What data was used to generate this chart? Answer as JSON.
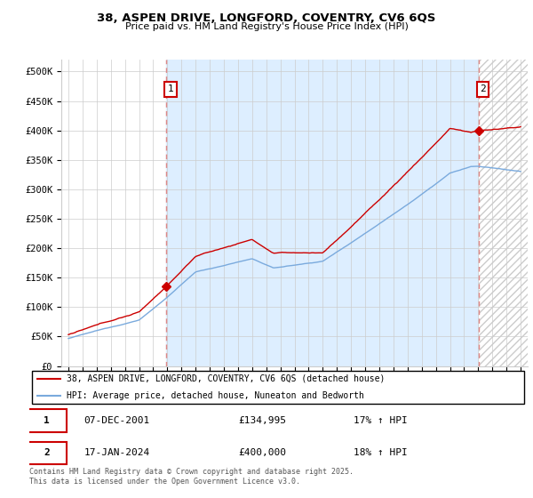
{
  "title1": "38, ASPEN DRIVE, LONGFORD, COVENTRY, CV6 6QS",
  "title2": "Price paid vs. HM Land Registry's House Price Index (HPI)",
  "legend1": "38, ASPEN DRIVE, LONGFORD, COVENTRY, CV6 6QS (detached house)",
  "legend2": "HPI: Average price, detached house, Nuneaton and Bedworth",
  "annotation1_date": "07-DEC-2001",
  "annotation1_price": "£134,995",
  "annotation1_hpi": "17% ↑ HPI",
  "annotation1_year": 2001.92,
  "annotation1_value": 134995,
  "annotation2_date": "17-JAN-2024",
  "annotation2_price": "£400,000",
  "annotation2_hpi": "18% ↑ HPI",
  "annotation2_year": 2024.04,
  "annotation2_value": 400000,
  "footer": "Contains HM Land Registry data © Crown copyright and database right 2025.\nThis data is licensed under the Open Government Licence v3.0.",
  "ylim": [
    0,
    520000
  ],
  "yticks": [
    0,
    50000,
    100000,
    150000,
    200000,
    250000,
    300000,
    350000,
    400000,
    450000,
    500000
  ],
  "ytick_labels": [
    "£0",
    "£50K",
    "£100K",
    "£150K",
    "£200K",
    "£250K",
    "£300K",
    "£350K",
    "£400K",
    "£450K",
    "£500K"
  ],
  "red_color": "#cc0000",
  "blue_color": "#7aaadd",
  "shade_color": "#ddeeff",
  "hatch_color": "#cccccc",
  "dashed_color": "#dd8888",
  "background_color": "#ffffff",
  "grid_color": "#cccccc",
  "xlim_start": 1995.0,
  "xlim_end": 2027.0
}
